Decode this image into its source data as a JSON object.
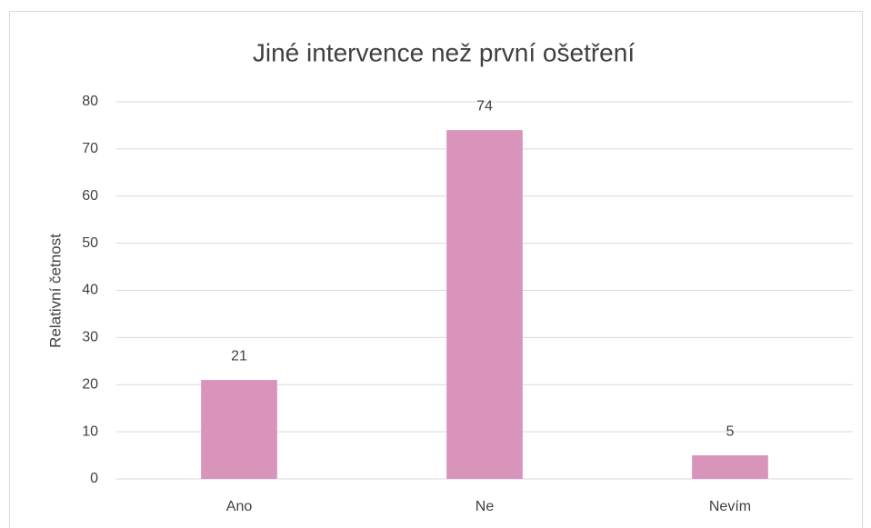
{
  "chart_data": {
    "type": "bar",
    "title": "Jiné intervence než první ošetření",
    "y_label": "Relativní četnost",
    "categories": [
      "Ano",
      "Ne",
      "Nevím"
    ],
    "values": [
      21,
      74,
      5
    ],
    "color": "#d994bc",
    "ylim": [
      0,
      80
    ],
    "yticks": [
      0,
      10,
      20,
      30,
      40,
      50,
      60,
      70,
      80
    ],
    "grid": true
  }
}
